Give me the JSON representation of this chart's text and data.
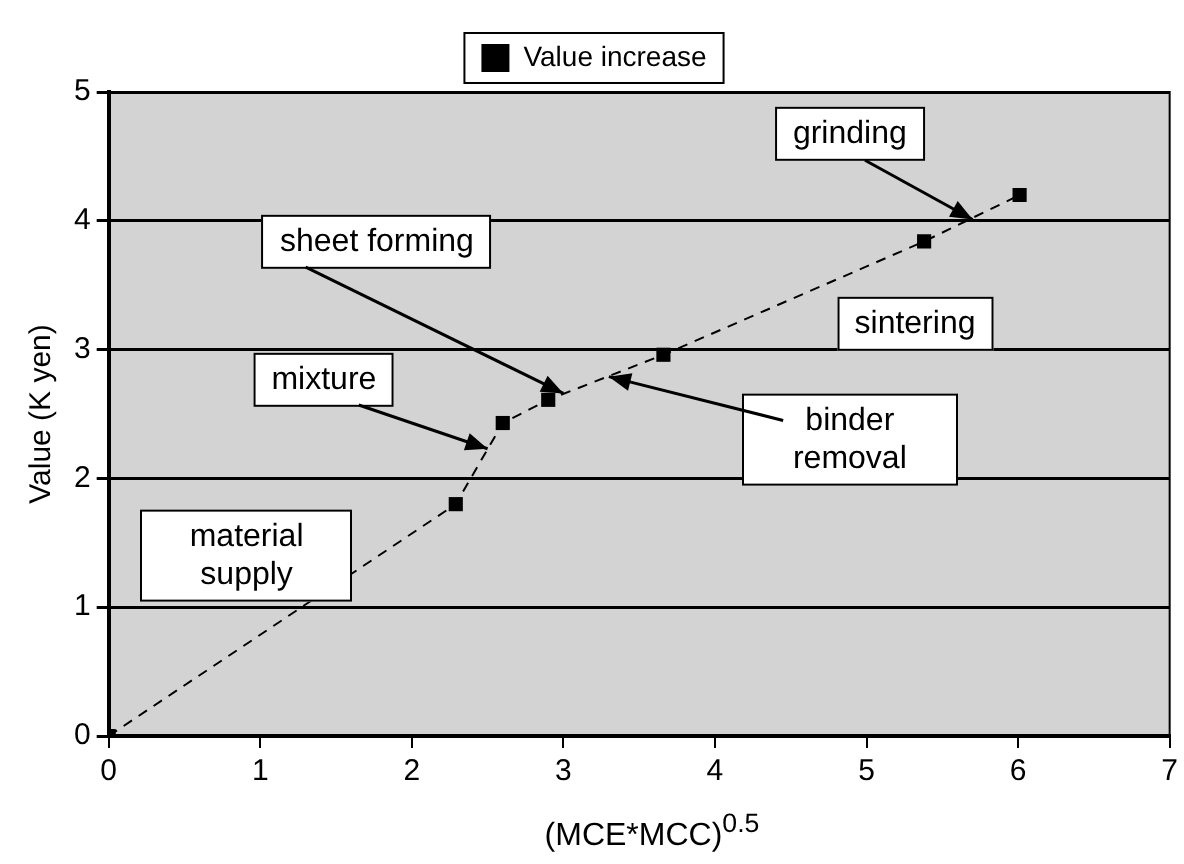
{
  "chart_data": {
    "type": "line",
    "xlabel": "(MCE*MCC)$^{0.5}$",
    "ylabel": "Value (K yen)",
    "series": [
      {
        "name": "Value increase",
        "color": "#000000",
        "x": [
          0,
          2.29,
          2.6,
          2.9,
          3.66,
          5.38,
          6.01
        ],
        "values": [
          0,
          1.8,
          2.43,
          2.61,
          2.96,
          3.84,
          4.2
        ]
      }
    ],
    "xlim": [
      0,
      7
    ],
    "xticks": [
      0,
      1,
      2,
      3,
      4,
      5,
      6,
      7
    ],
    "ylim": [
      0,
      5
    ],
    "yticks": [
      0,
      1,
      2,
      3,
      4,
      5
    ],
    "grid": "y",
    "legend": "top",
    "marker": "square",
    "line_style": "dashed",
    "annotations": [
      {
        "text": "grinding",
        "x": 5.7,
        "y": 4.01
      },
      {
        "text": "sheet forming",
        "x": 3.0,
        "y": 2.66
      },
      {
        "text": "mixture",
        "x": 2.5,
        "y": 2.23
      },
      "material supply",
      "sintering",
      {
        "text": "binder removal",
        "x": 3.3,
        "y": 2.79
      }
    ]
  }
}
